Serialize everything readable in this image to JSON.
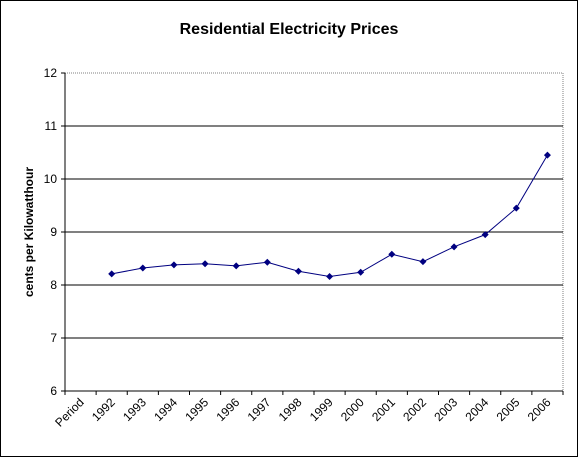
{
  "chart_data": {
    "type": "line",
    "title": "Residential Electricity Prices",
    "xlabel": "",
    "ylabel": "cents per Kilowatthour",
    "categories": [
      "Period",
      "1992",
      "1993",
      "1994",
      "1995",
      "1996",
      "1997",
      "1998",
      "1999",
      "2000",
      "2001",
      "2002",
      "2003",
      "2004",
      "2005",
      "2006"
    ],
    "series": [
      {
        "name": "",
        "values": [
          null,
          8.21,
          8.32,
          8.38,
          8.4,
          8.36,
          8.43,
          8.26,
          8.16,
          8.24,
          8.58,
          8.44,
          8.72,
          8.95,
          9.45,
          10.45
        ]
      }
    ],
    "ylim": [
      6,
      12
    ],
    "yticks": [
      6,
      7,
      8,
      9,
      10,
      11,
      12
    ],
    "grid": "horizontal",
    "legend": "none",
    "colors": {
      "series": "#000080",
      "grid": "#000000",
      "plot_border": "#808080"
    }
  }
}
